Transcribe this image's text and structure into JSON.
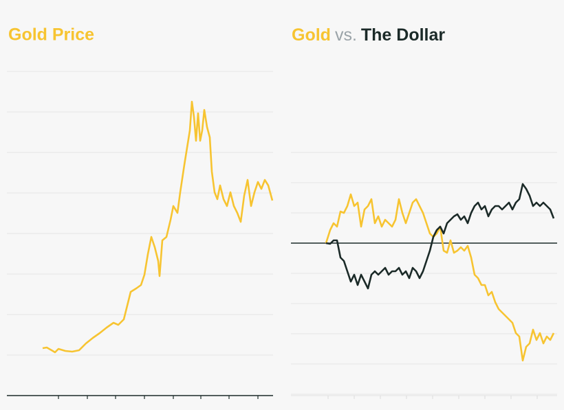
{
  "chart_data": [
    {
      "type": "line",
      "title": "Gold Price",
      "x": [
        -23,
        -17,
        -10,
        -5,
        0,
        10,
        20,
        30,
        40,
        50,
        60,
        70,
        80,
        87,
        95,
        100,
        105,
        113,
        120,
        125,
        130,
        135,
        140,
        145,
        147,
        151,
        157,
        163,
        167,
        173,
        177,
        183,
        187,
        191,
        194,
        197,
        200,
        203,
        206,
        209,
        212,
        216,
        220,
        223,
        227,
        231,
        235,
        240,
        245,
        250,
        255,
        260,
        265,
        270,
        275,
        280,
        285,
        290,
        295,
        300,
        305,
        311
      ],
      "series": [
        {
          "color": "#f7c431",
          "values": [
            69,
            70,
            66,
            63,
            68,
            65,
            64,
            66,
            76,
            84,
            91,
            99,
            106,
            103,
            111,
            131,
            151,
            156,
            161,
            176,
            206,
            231,
            216,
            196,
            174,
            226,
            231,
            256,
            276,
            266,
            296,
            336,
            361,
            386,
            428,
            406,
            371,
            411,
            371,
            386,
            416,
            391,
            376,
            326,
            296,
            286,
            306,
            286,
            276,
            296,
            276,
            266,
            253,
            291,
            314,
            276,
            296,
            311,
            301,
            314,
            306,
            284
          ]
        }
      ],
      "xlim": [
        -75,
        312
      ],
      "xticks": [
        0,
        42,
        83,
        125,
        167,
        207,
        248,
        290
      ],
      "ylim": [
        0,
        472
      ],
      "yticks": [
        59,
        118,
        177,
        236,
        295,
        354,
        413,
        472
      ],
      "grid": true
    },
    {
      "type": "line",
      "title_middle": "vs.",
      "x": [
        -3,
        3,
        8,
        13,
        18,
        23,
        28,
        33,
        38,
        43,
        48,
        53,
        58,
        63,
        68,
        73,
        78,
        83,
        88,
        93,
        98,
        103,
        108,
        113,
        118,
        123,
        128,
        133,
        138,
        143,
        148,
        153,
        158,
        163,
        168,
        173,
        178,
        183,
        188,
        193,
        198,
        203,
        208,
        213,
        218,
        223,
        228,
        233,
        238,
        243,
        248,
        253,
        258,
        263,
        268,
        273,
        278,
        283,
        288,
        293,
        298,
        303,
        308,
        313,
        318,
        323,
        328
      ],
      "series": [
        {
          "name": "Gold",
          "color": "#f7c431",
          "values": [
            0,
            19,
            29,
            24,
            46,
            44,
            54,
            71,
            54,
            59,
            24,
            49,
            54,
            64,
            29,
            39,
            24,
            34,
            29,
            24,
            34,
            64,
            44,
            29,
            44,
            59,
            64,
            54,
            44,
            29,
            14,
            9,
            14,
            24,
            -11,
            -14,
            4,
            -14,
            -11,
            -6,
            -11,
            -4,
            -21,
            -46,
            -51,
            -61,
            -61,
            -76,
            -71,
            -86,
            -96,
            -101,
            -106,
            -111,
            -116,
            -131,
            -136,
            -171,
            -151,
            -146,
            -126,
            -141,
            -131,
            -146,
            -136,
            -141,
            -131
          ]
        },
        {
          "name": "The Dollar",
          "color": "#1b2a28",
          "values": [
            0,
            -1,
            4,
            4,
            -21,
            -26,
            -41,
            -56,
            -46,
            -61,
            -46,
            -56,
            -66,
            -46,
            -41,
            -46,
            -41,
            -36,
            -46,
            -41,
            -41,
            -36,
            -46,
            -41,
            -51,
            -36,
            -41,
            -51,
            -41,
            -26,
            -11,
            9,
            19,
            24,
            14,
            29,
            34,
            39,
            42,
            34,
            39,
            29,
            44,
            54,
            59,
            49,
            54,
            39,
            49,
            54,
            54,
            49,
            54,
            59,
            49,
            59,
            64,
            86,
            79,
            69,
            54,
            59,
            54,
            59,
            54,
            49,
            36
          ]
        }
      ],
      "xlim": [
        -54,
        333
      ],
      "xticks": [
        0,
        38,
        76,
        114,
        152,
        190,
        228,
        266,
        304
      ],
      "ylim": [
        -222,
        132
      ],
      "yticks": [
        132,
        88,
        44,
        0,
        -44,
        -88,
        -132,
        -176,
        -220
      ],
      "grid": true
    }
  ]
}
